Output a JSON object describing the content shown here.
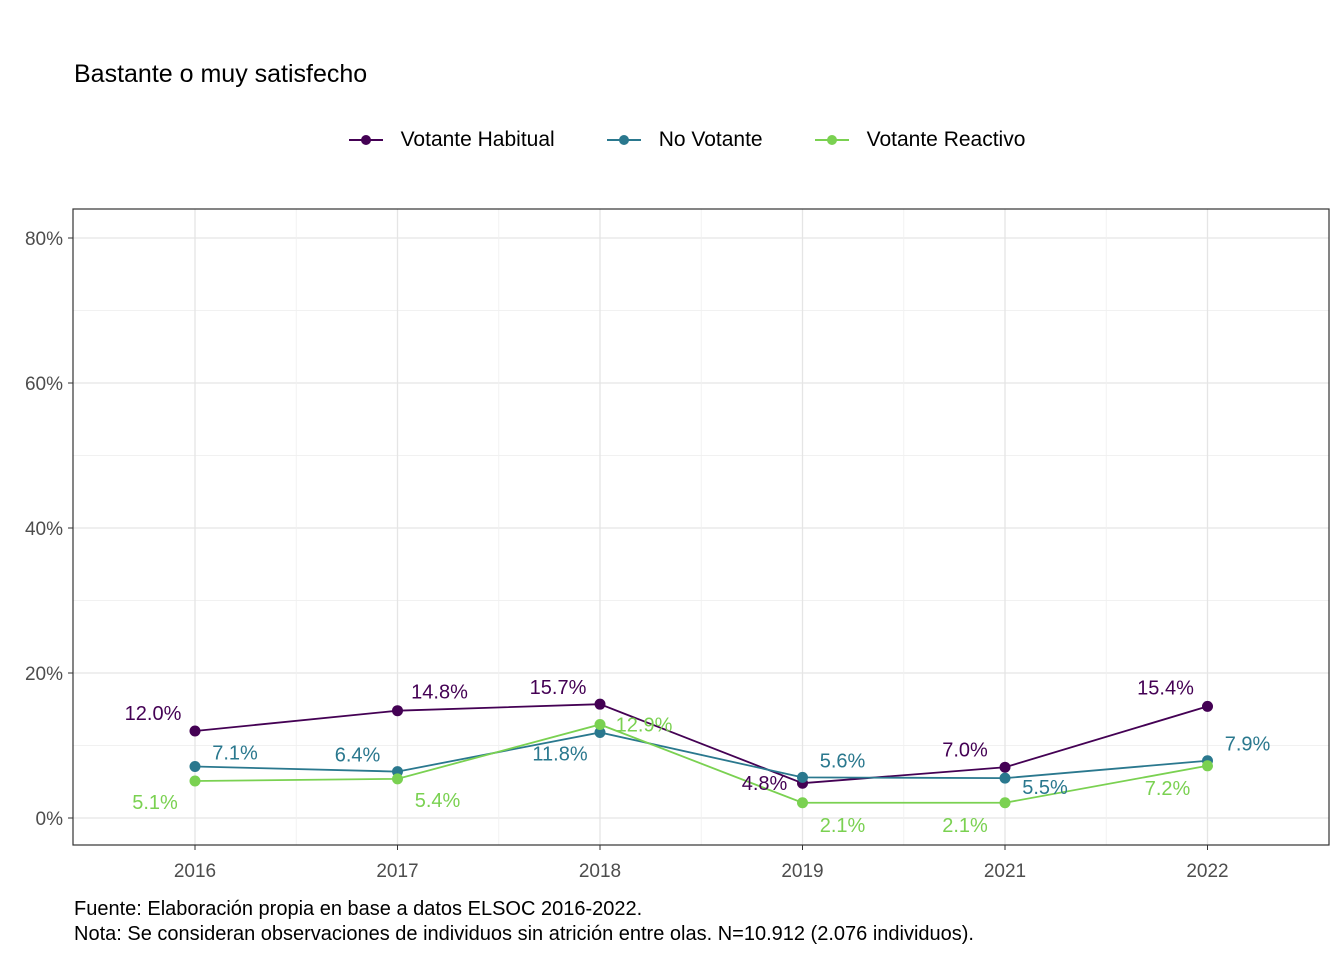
{
  "title": "Bastante o muy satisfecho",
  "caption": {
    "line1": "Fuente: Elaboración propia en base a datos ELSOC 2016-2022.",
    "line2": "Nota: Se consideran observaciones de individuos sin atrición entre olas. N=10.912 (2.076 individuos)."
  },
  "chart_data": {
    "type": "line",
    "categories": [
      "2016",
      "2017",
      "2018",
      "2019",
      "2021",
      "2022"
    ],
    "ylim": [
      0,
      80
    ],
    "yticks": [
      0,
      20,
      40,
      60,
      80
    ],
    "ytick_labels": [
      "0%",
      "20%",
      "40%",
      "60%",
      "80%"
    ],
    "grid": true,
    "legend_position": "top",
    "series": [
      {
        "name": "Votante Habitual",
        "color": "#440154",
        "values": [
          12.0,
          14.8,
          15.7,
          4.8,
          7.0,
          15.4
        ],
        "labels": [
          "12.0%",
          "14.8%",
          "15.7%",
          "4.8%",
          "7.0%",
          "15.4%"
        ]
      },
      {
        "name": "No Votante",
        "color": "#2A788E",
        "values": [
          7.1,
          6.4,
          11.8,
          5.6,
          5.5,
          7.9
        ],
        "labels": [
          "7.1%",
          "6.4%",
          "11.8%",
          "5.6%",
          "5.5%",
          "7.9%"
        ]
      },
      {
        "name": "Votante Reactivo",
        "color": "#7AD151",
        "values": [
          5.1,
          5.4,
          12.9,
          2.1,
          2.1,
          7.2
        ],
        "labels": [
          "5.1%",
          "5.4%",
          "12.9%",
          "2.1%",
          "2.1%",
          "7.2%"
        ]
      }
    ]
  }
}
